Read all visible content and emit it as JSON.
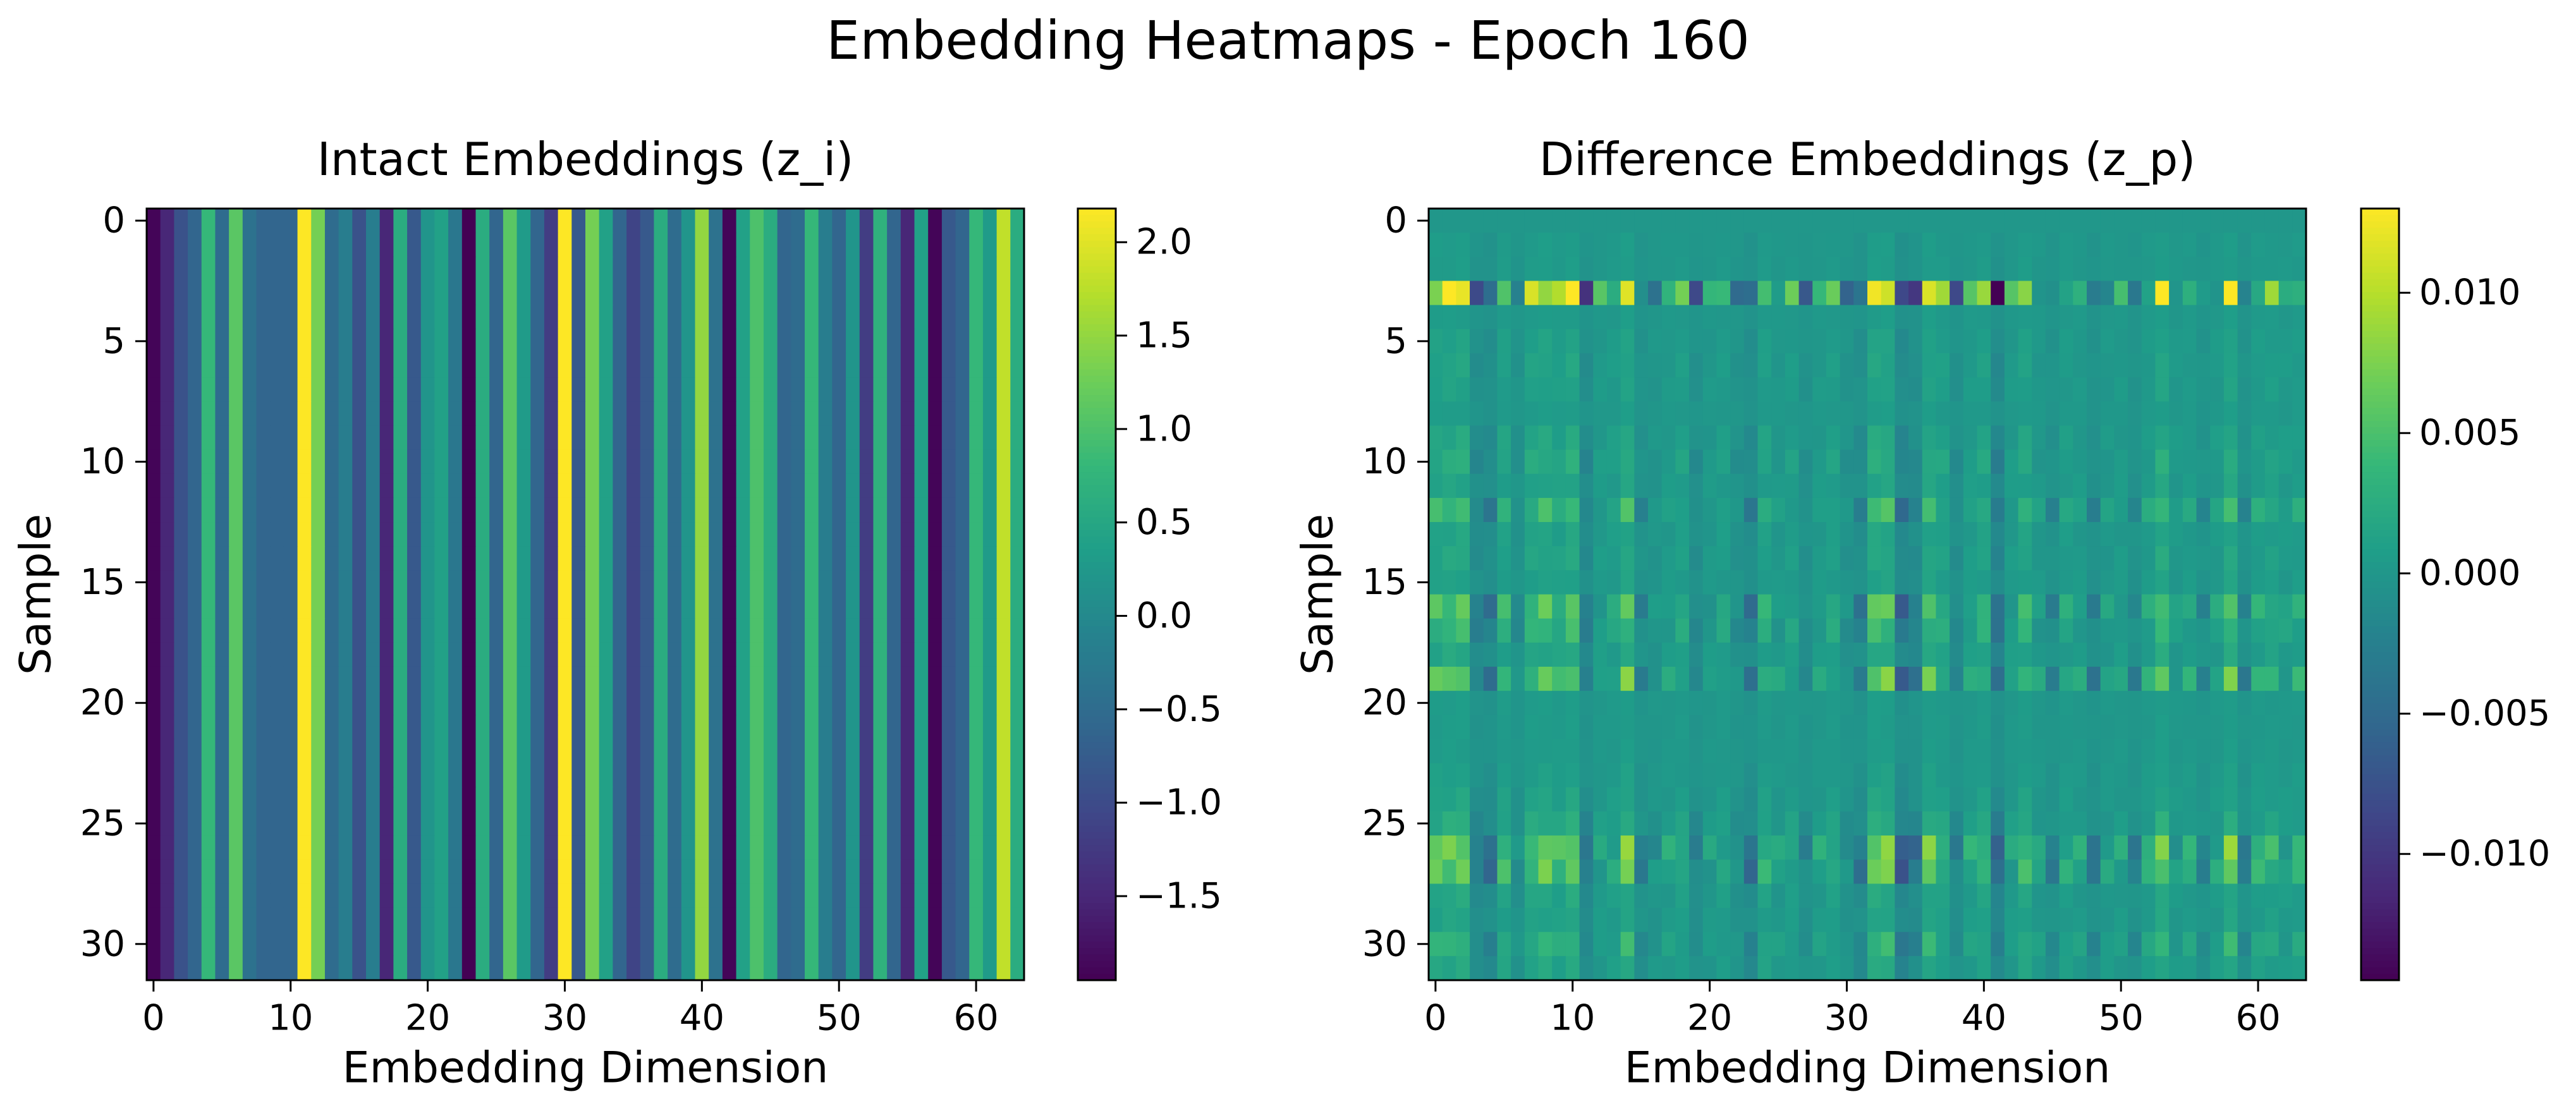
{
  "suptitle": "Embedding Heatmaps - Epoch 160",
  "chart_data": [
    {
      "type": "heatmap",
      "title": "Intact Embeddings (z_i)",
      "xlabel": "Embedding Dimension",
      "ylabel": "Sample",
      "n_cols": 64,
      "n_rows": 32,
      "x_ticks": [
        0,
        10,
        20,
        30,
        40,
        50,
        60
      ],
      "y_ticks": [
        0,
        5,
        10,
        15,
        20,
        25,
        30
      ],
      "colormap": "viridis",
      "vmin": -1.95,
      "vmax": 2.18,
      "colorbar_ticks": [
        2.0,
        1.5,
        1.0,
        0.5,
        0.0,
        -0.5,
        -1.0,
        -1.5
      ],
      "colorbar_tick_labels": [
        "2.0",
        "1.5",
        "1.0",
        "0.5",
        "0.0",
        "−0.5",
        "−1.0",
        "−1.5"
      ],
      "row_pattern": "identical_rows",
      "column_values": [
        -1.9,
        -1.5,
        -0.9,
        -0.6,
        0.8,
        -0.5,
        1.1,
        -0.4,
        -0.6,
        -0.6,
        -0.6,
        2.2,
        1.3,
        -0.5,
        -0.2,
        -0.9,
        -0.2,
        -1.5,
        0.6,
        -0.8,
        0.2,
        0.4,
        -0.3,
        -1.95,
        0.6,
        -0.6,
        1.1,
        0.3,
        -0.6,
        -1.2,
        2.2,
        -0.8,
        1.3,
        0.4,
        -0.6,
        -1.1,
        -0.8,
        0.6,
        -0.5,
        0.2,
        1.5,
        -0.4,
        -1.9,
        0.4,
        1.0,
        0.6,
        -0.6,
        -0.5,
        0.8,
        -0.2,
        -0.6,
        0.2,
        -1.2,
        0.7,
        -0.6,
        -1.5,
        0.4,
        -1.9,
        -0.8,
        -0.6,
        0.8,
        0.3,
        1.8,
        0.6
      ]
    },
    {
      "type": "heatmap",
      "title": "Difference Embeddings (z_p)",
      "xlabel": "Embedding Dimension",
      "ylabel": "Sample",
      "n_cols": 64,
      "n_rows": 32,
      "x_ticks": [
        0,
        10,
        20,
        30,
        40,
        50,
        60
      ],
      "y_ticks": [
        0,
        5,
        10,
        15,
        20,
        25,
        30
      ],
      "colormap": "viridis",
      "vmin": -0.0145,
      "vmax": 0.013,
      "colorbar_ticks": [
        0.01,
        0.005,
        0.0,
        -0.005,
        -0.01
      ],
      "colorbar_tick_labels": [
        "0.010",
        "0.005",
        "0.000",
        "−0.005",
        "−0.010"
      ],
      "row_scale": [
        0,
        0.05,
        0.05,
        1.0,
        0.05,
        0.1,
        0.12,
        0.1,
        0.05,
        0.15,
        0.2,
        0.12,
        0.35,
        0.12,
        0.15,
        0.1,
        0.45,
        0.3,
        0.15,
        0.5,
        0.05,
        0.05,
        0.05,
        0.08,
        0.12,
        0.2,
        0.55,
        0.5,
        0.15,
        0.12,
        0.28,
        0.15
      ],
      "column_pattern": [
        0.8,
        0.9,
        1.0,
        -0.5,
        -0.6,
        0.6,
        -0.2,
        0.7,
        0.9,
        0.6,
        1.0,
        -0.6,
        0.2,
        0.3,
        1.0,
        -0.3,
        -0.1,
        0.2,
        0.4,
        -0.4,
        0.1,
        0.3,
        -0.2,
        -0.6,
        0.5,
        0.1,
        0.3,
        -0.3,
        0.2,
        0.4,
        -0.2,
        -0.5,
        1.0,
        1.0,
        -0.9,
        -0.6,
        0.9,
        0.5,
        -0.4,
        0.3,
        0.6,
        -0.9,
        0.2,
        0.7,
        0.1,
        -0.3,
        0.3,
        0.2,
        -0.4,
        0.1,
        0.2,
        -0.3,
        0.3,
        1.0,
        0.1,
        0.3,
        -0.2,
        0.2,
        1.0,
        -0.3,
        0.4,
        0.5,
        0.2,
        0.4
      ]
    }
  ]
}
